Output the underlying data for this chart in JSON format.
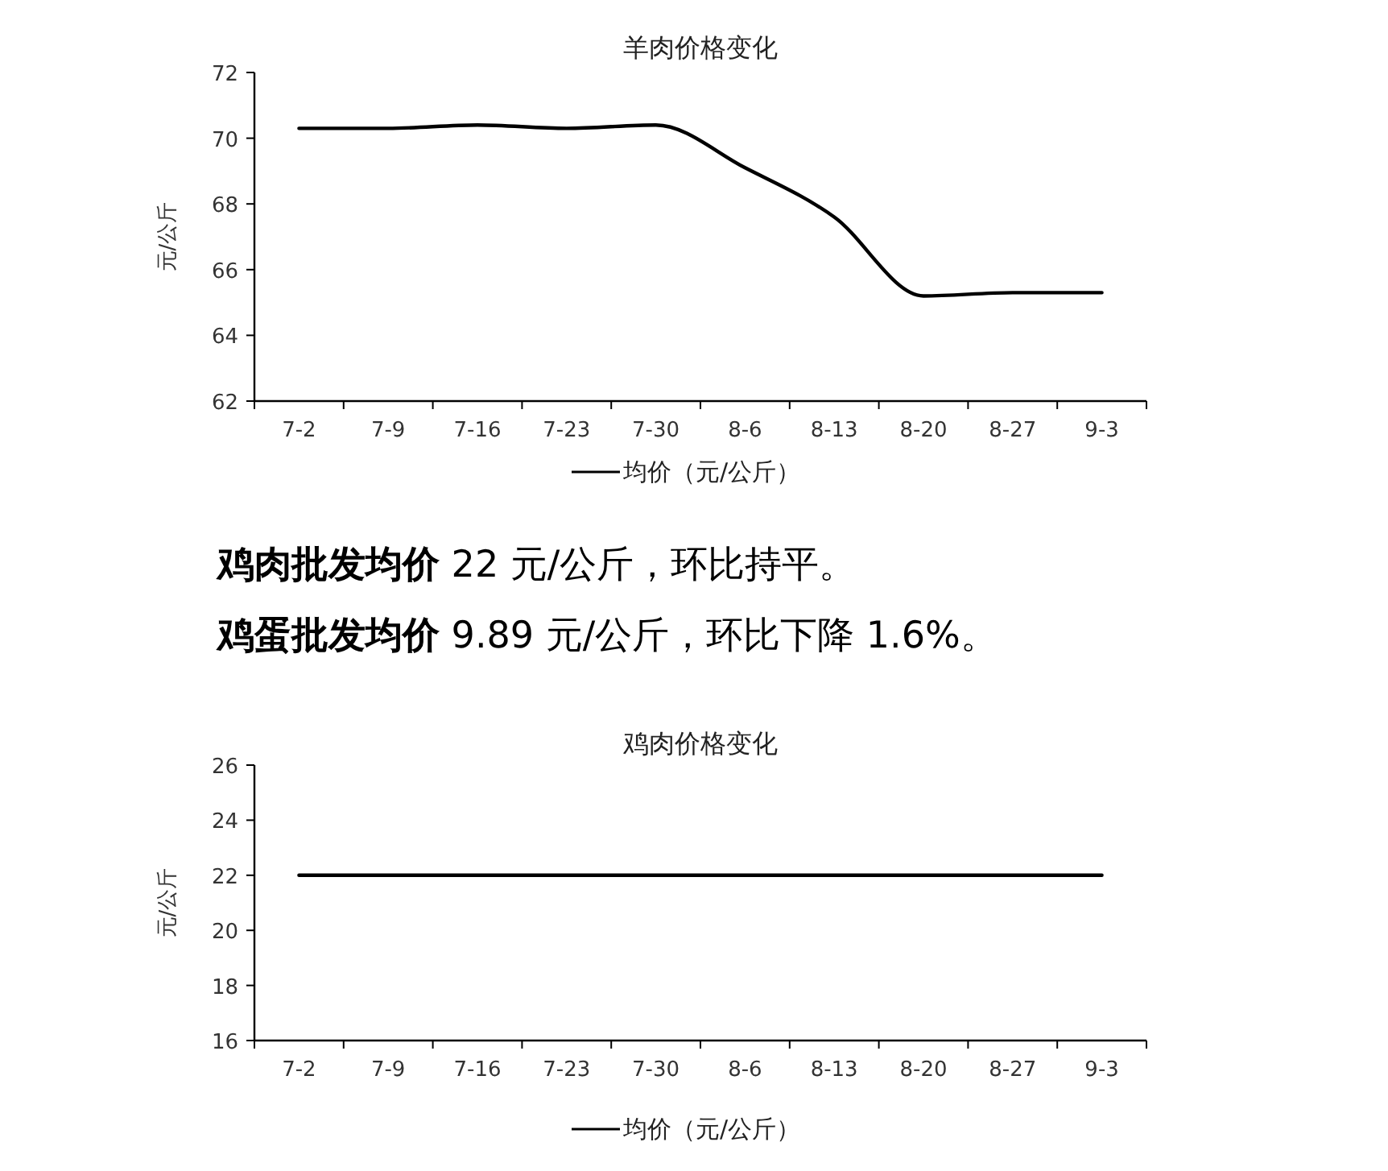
{
  "chart_data": [
    {
      "type": "line",
      "title": "羊肉价格变化",
      "ylabel": "元/公斤",
      "categories": [
        "7-2",
        "7-9",
        "7-16",
        "7-23",
        "7-30",
        "8-6",
        "8-13",
        "8-20",
        "8-27",
        "9-3"
      ],
      "series": [
        {
          "name": "均价（元/公斤）",
          "color": "#000000",
          "values": [
            70.3,
            70.3,
            70.4,
            70.3,
            70.4,
            69.1,
            67.6,
            65.2,
            65.3,
            65.3
          ]
        }
      ],
      "ylim": [
        62,
        72
      ],
      "yticks": [
        62,
        64,
        66,
        68,
        70,
        72
      ],
      "legend": "bottom",
      "grid": false,
      "marker": "none",
      "line_style": "solid"
    },
    {
      "type": "other",
      "annotations": [
        "鸡肉批发均价",
        "22 元/公斤，环比持平。",
        "鸡蛋批发均价",
        "9.89 元/公斤，环比下降 1.6%。"
      ]
    },
    {
      "type": "line",
      "title": "鸡肉价格变化",
      "ylabel": "元/公斤",
      "categories": [
        "7-2",
        "7-9",
        "7-16",
        "7-23",
        "7-30",
        "8-6",
        "8-13",
        "8-20",
        "8-27",
        "9-3"
      ],
      "series": [
        {
          "name": "均价（元/公斤）",
          "color": "#000000",
          "values": [
            22,
            22,
            22,
            22,
            22,
            22,
            22,
            22,
            22,
            22
          ]
        }
      ],
      "ylim": [
        16,
        26
      ],
      "yticks": [
        16,
        18,
        20,
        22,
        24,
        26
      ],
      "legend": "bottom",
      "grid": false,
      "marker": "none",
      "line_style": "solid"
    }
  ]
}
